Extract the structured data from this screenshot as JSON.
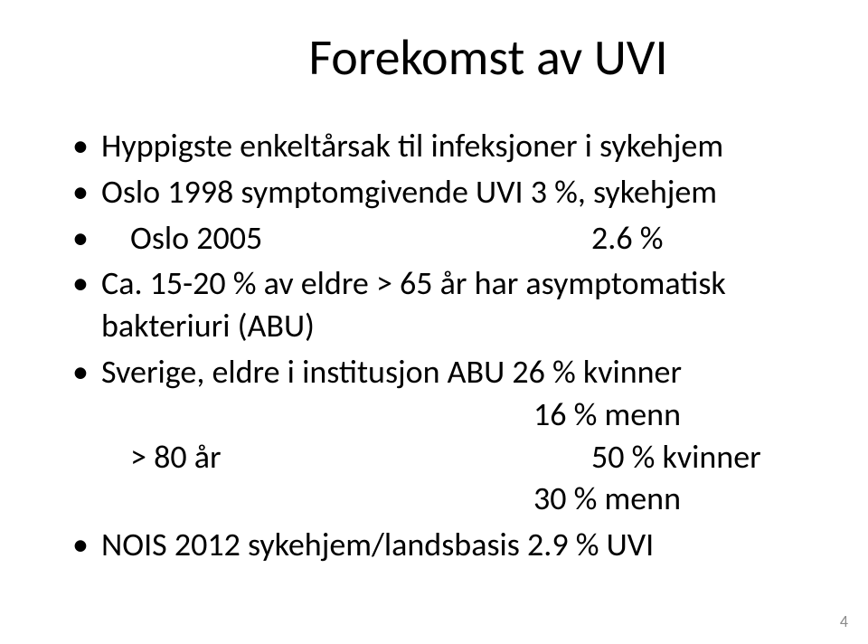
{
  "title": "Forekomst av UVI",
  "bullets": {
    "b1": "Hyppigste enkeltårsak til infeksjoner i sykehjem",
    "b2": "Oslo 1998 symptomgivende UVI 3 %, sykehjem",
    "b3_left": "Oslo 2005",
    "b3_right": "2.6 %",
    "b4": "Ca. 15-20 % av eldre > 65 år har asymptomatisk bakteriuri (ABU)",
    "b5": "Sverige, eldre i institusjon ABU 26 % kvinner",
    "b5_sub1": "16 % menn",
    "b5_sub2_left": "> 80 år",
    "b5_sub2_right": "50 % kvinner",
    "b5_sub3": "30 % menn",
    "b6": "NOIS 2012 sykehjem/landsbasis 2.9 % UVI"
  },
  "page_number": "4",
  "colors": {
    "background": "#ffffff",
    "text": "#000000",
    "page_num": "#8b8b8b"
  },
  "fonts": {
    "title_size_pt": 42,
    "body_size_pt": 27,
    "page_num_size_pt": 13
  }
}
